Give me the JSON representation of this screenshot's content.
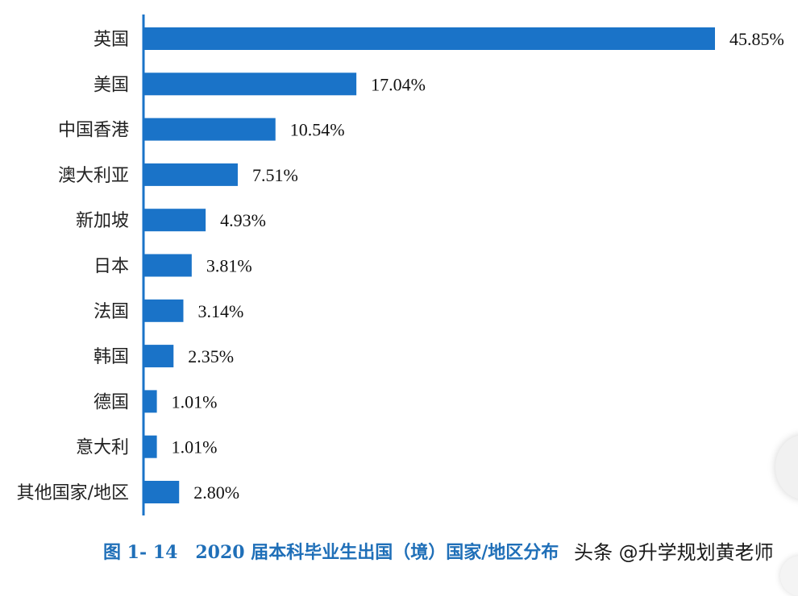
{
  "chart_data": {
    "type": "bar",
    "orientation": "horizontal",
    "categories": [
      "英国",
      "美国",
      "中国香港",
      "澳大利亚",
      "新加坡",
      "日本",
      "法国",
      "韩国",
      "德国",
      "意大利",
      "其他国家/地区"
    ],
    "values": [
      45.85,
      17.04,
      10.54,
      7.51,
      4.93,
      3.81,
      3.14,
      2.35,
      1.01,
      1.01,
      2.8
    ],
    "value_labels": [
      "45.85%",
      "17.04%",
      "10.54%",
      "7.51%",
      "4.93%",
      "3.81%",
      "3.14%",
      "2.35%",
      "1.01%",
      "1.01%",
      "2.80%"
    ],
    "unit": "%",
    "xlim": [
      0,
      45.85
    ],
    "grid": false,
    "bar_color": "#1a73c8",
    "axis_color": "#1a73c8"
  },
  "caption": "图 1- 14　2020 届本科毕业生出国（境）国家/地区分布",
  "watermark": "头条 @升学规划黄老师"
}
